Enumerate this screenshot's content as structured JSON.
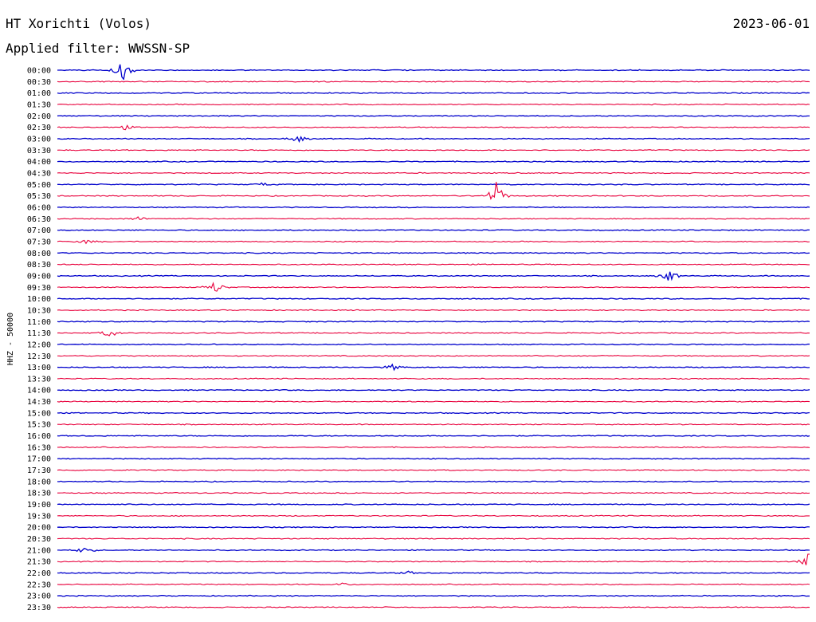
{
  "header": {
    "station": "HT Xorichti (Volos)",
    "date": "2023-06-01",
    "filter": "Applied filter: WWSSN-SP"
  },
  "colors": {
    "even_trace": "#0000cc",
    "odd_trace": "#e8003c"
  },
  "chart_data": {
    "type": "line",
    "title": "HT Xorichti (Volos)",
    "ylabel": "HHZ - 50000",
    "xlabel": "",
    "legend": "none",
    "grid": false,
    "row_labels": [
      "00:00",
      "00:30",
      "01:00",
      "01:30",
      "02:00",
      "02:30",
      "03:00",
      "03:30",
      "04:00",
      "04:30",
      "05:00",
      "05:30",
      "06:00",
      "06:30",
      "07:00",
      "07:30",
      "08:00",
      "08:30",
      "09:00",
      "09:30",
      "10:00",
      "10:30",
      "11:00",
      "11:30",
      "12:00",
      "12:30",
      "13:00",
      "13:30",
      "14:00",
      "14:30",
      "15:00",
      "15:30",
      "16:00",
      "16:30",
      "17:00",
      "17:30",
      "18:00",
      "18:30",
      "19:00",
      "19:30",
      "20:00",
      "20:30",
      "21:00",
      "21:30",
      "22:00",
      "22:30",
      "23:00",
      "23:30"
    ],
    "row_duration_minutes": 30,
    "events": [
      {
        "row": 0,
        "minute": 2.6,
        "amplitude": 14
      },
      {
        "row": 5,
        "minute": 2.7,
        "amplitude": 3
      },
      {
        "row": 6,
        "minute": 9.6,
        "amplitude": 5
      },
      {
        "row": 10,
        "minute": 8.2,
        "amplitude": 2
      },
      {
        "row": 11,
        "minute": 17.5,
        "amplitude": 18
      },
      {
        "row": 13,
        "minute": 3.2,
        "amplitude": 3
      },
      {
        "row": 15,
        "minute": 1.2,
        "amplitude": 3
      },
      {
        "row": 18,
        "minute": 24.4,
        "amplitude": 8
      },
      {
        "row": 19,
        "minute": 6.3,
        "amplitude": 8
      },
      {
        "row": 23,
        "minute": 2.1,
        "amplitude": 6
      },
      {
        "row": 26,
        "minute": 13.4,
        "amplitude": 4
      },
      {
        "row": 42,
        "minute": 1.1,
        "amplitude": 5
      },
      {
        "row": 43,
        "minute": 30.0,
        "amplitude": 14
      },
      {
        "row": 45,
        "minute": 11.4,
        "amplitude": 2
      },
      {
        "row": 44,
        "minute": 14.0,
        "amplitude": 2
      }
    ]
  }
}
